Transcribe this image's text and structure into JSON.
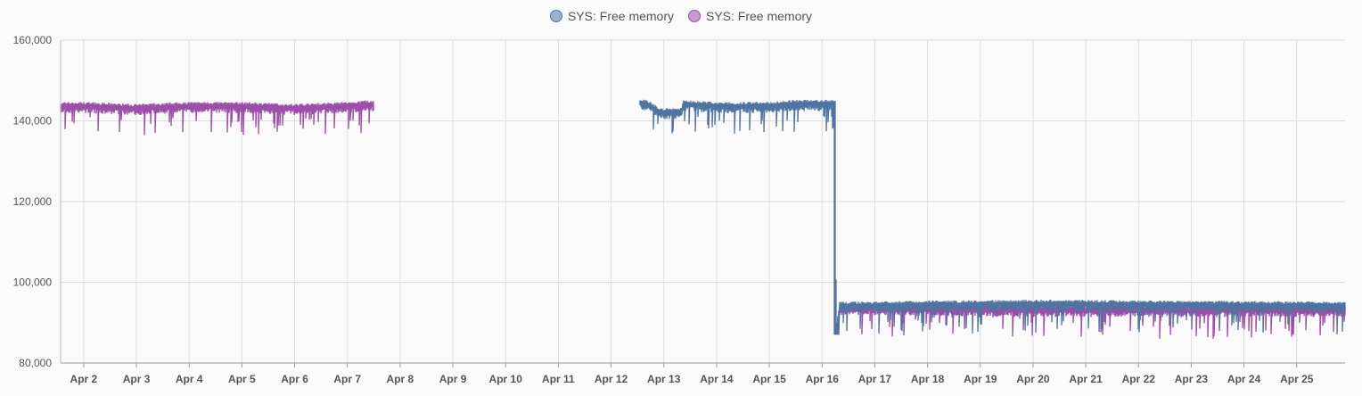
{
  "legend": [
    {
      "label": "SYS: Free memory",
      "color": "#4f74a1",
      "fill": "#9db1cb"
    },
    {
      "label": "SYS: Free memory",
      "color": "#9c4fa8",
      "fill": "#c79ad0"
    }
  ],
  "chart_data": {
    "type": "line",
    "title": "",
    "xlabel": "",
    "ylabel": "",
    "ylim": [
      80000,
      160000
    ],
    "xlim": [
      "Apr 1 13:30",
      "Apr 25 22:00"
    ],
    "y_ticks": [
      "80,000",
      "100,000",
      "120,000",
      "140,000",
      "160,000"
    ],
    "x_ticks": [
      "Apr 2",
      "Apr 3",
      "Apr 4",
      "Apr 5",
      "Apr 6",
      "Apr 7",
      "Apr 8",
      "Apr 9",
      "Apr 10",
      "Apr 11",
      "Apr 12",
      "Apr 13",
      "Apr 14",
      "Apr 15",
      "Apr 16",
      "Apr 17",
      "Apr 18",
      "Apr 19",
      "Apr 20",
      "Apr 21",
      "Apr 22",
      "Apr 23",
      "Apr 24",
      "Apr 25"
    ],
    "grid": true,
    "legend_position": "top-center",
    "series": [
      {
        "name": "SYS: Free memory",
        "color": "#4f74a1",
        "segments": [
          {
            "points": [
              [
                "Apr 12 13:00",
                144500
              ],
              [
                "Apr 12 18:00",
                143500
              ],
              [
                "Apr 12 22:00",
                142000
              ],
              [
                "Apr 13 08:00",
                142000
              ],
              [
                "Apr 13 09:00",
                144000
              ],
              [
                "Apr 14 00:00",
                143500
              ],
              [
                "Apr 15 00:00",
                143500
              ],
              [
                "Apr 15 12:00",
                144000
              ],
              [
                "Apr 16 06:00",
                144000
              ],
              [
                "Apr 16 06:30",
                87000
              ],
              [
                "Apr 16 08:00",
                94000
              ],
              [
                "Apr 20 00:00",
                94500
              ],
              [
                "Apr 25 22:00",
                94000
              ]
            ]
          }
        ]
      },
      {
        "name": "SYS: Free memory",
        "color": "#9c4fa8",
        "segments": [
          {
            "points": [
              [
                "Apr 1 13:30",
                143500
              ],
              [
                "Apr 2 00:00",
                143500
              ],
              [
                "Apr 3 00:00",
                143000
              ],
              [
                "Apr 4 00:00",
                143500
              ],
              [
                "Apr 5 00:00",
                143500
              ],
              [
                "Apr 6 00:00",
                143000
              ],
              [
                "Apr 7 00:00",
                143500
              ],
              [
                "Apr 7 12:00",
                144000
              ]
            ]
          },
          {
            "points": [
              [
                "Apr 16 06:30",
                88000
              ],
              [
                "Apr 16 08:00",
                93500
              ],
              [
                "Apr 20 00:00",
                93000
              ],
              [
                "Apr 25 22:00",
                93000
              ]
            ]
          }
        ]
      }
    ]
  }
}
